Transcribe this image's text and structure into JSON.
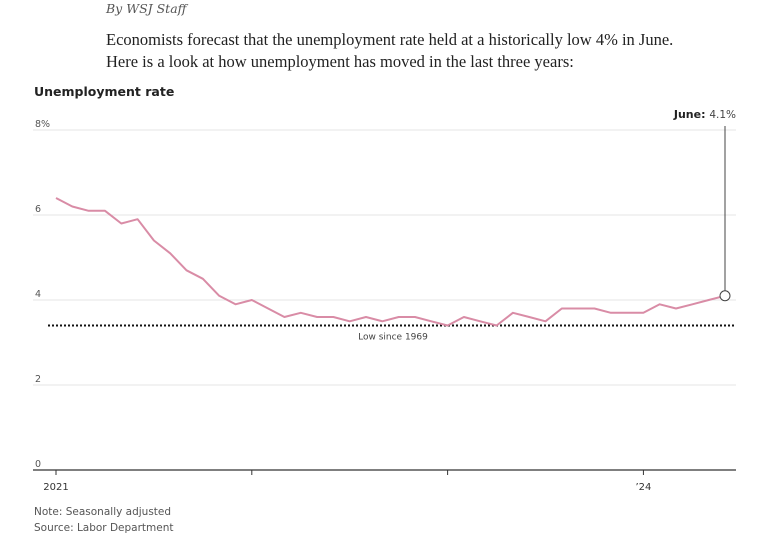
{
  "article": {
    "byline": "By WSJ Staff",
    "intro_line1": "Economists forecast that the unemployment rate held at a historically low 4% in June.",
    "intro_line2": "Here is a look at how unemployment has moved in the last three years:"
  },
  "chart_data": {
    "type": "line",
    "title": "Unemployment rate",
    "y_ticks": [
      "8%",
      "6",
      "4",
      "2",
      "0"
    ],
    "y_tick_values": [
      8,
      6,
      4,
      2,
      0
    ],
    "ylim": [
      0,
      8
    ],
    "x_tick_labels": [
      "2021",
      "’24"
    ],
    "x_tick_positions": [
      "2021-01",
      "2024-01"
    ],
    "x_minor_ticks": [
      "2022-01",
      "2023-01"
    ],
    "xlim": [
      "2021-01",
      "2024-06"
    ],
    "grid": true,
    "series": [
      {
        "color": "#d98ca6",
        "x": [
          "2021-01",
          "2021-02",
          "2021-03",
          "2021-04",
          "2021-05",
          "2021-06",
          "2021-07",
          "2021-08",
          "2021-09",
          "2021-10",
          "2021-11",
          "2021-12",
          "2022-01",
          "2022-02",
          "2022-03",
          "2022-04",
          "2022-05",
          "2022-06",
          "2022-07",
          "2022-08",
          "2022-09",
          "2022-10",
          "2022-11",
          "2022-12",
          "2023-01",
          "2023-02",
          "2023-03",
          "2023-04",
          "2023-05",
          "2023-06",
          "2023-07",
          "2023-08",
          "2023-09",
          "2023-10",
          "2023-11",
          "2023-12",
          "2024-01",
          "2024-02",
          "2024-03",
          "2024-04",
          "2024-05",
          "2024-06"
        ],
        "values": [
          6.4,
          6.2,
          6.1,
          6.1,
          5.8,
          5.9,
          5.4,
          5.1,
          4.7,
          4.5,
          4.1,
          3.9,
          4.0,
          3.8,
          3.6,
          3.7,
          3.6,
          3.6,
          3.5,
          3.6,
          3.5,
          3.6,
          3.6,
          3.5,
          3.4,
          3.6,
          3.5,
          3.4,
          3.7,
          3.6,
          3.5,
          3.8,
          3.8,
          3.8,
          3.7,
          3.7,
          3.7,
          3.9,
          3.8,
          3.9,
          4.0,
          4.1
        ]
      }
    ],
    "reference_line": {
      "value": 3.4,
      "label": "Low since 1969",
      "style": "dotted"
    },
    "callout": {
      "label": "June:",
      "value": "4.1%"
    },
    "notes": [
      "Note: Seasonally adjusted",
      "Source: Labor Department"
    ]
  }
}
